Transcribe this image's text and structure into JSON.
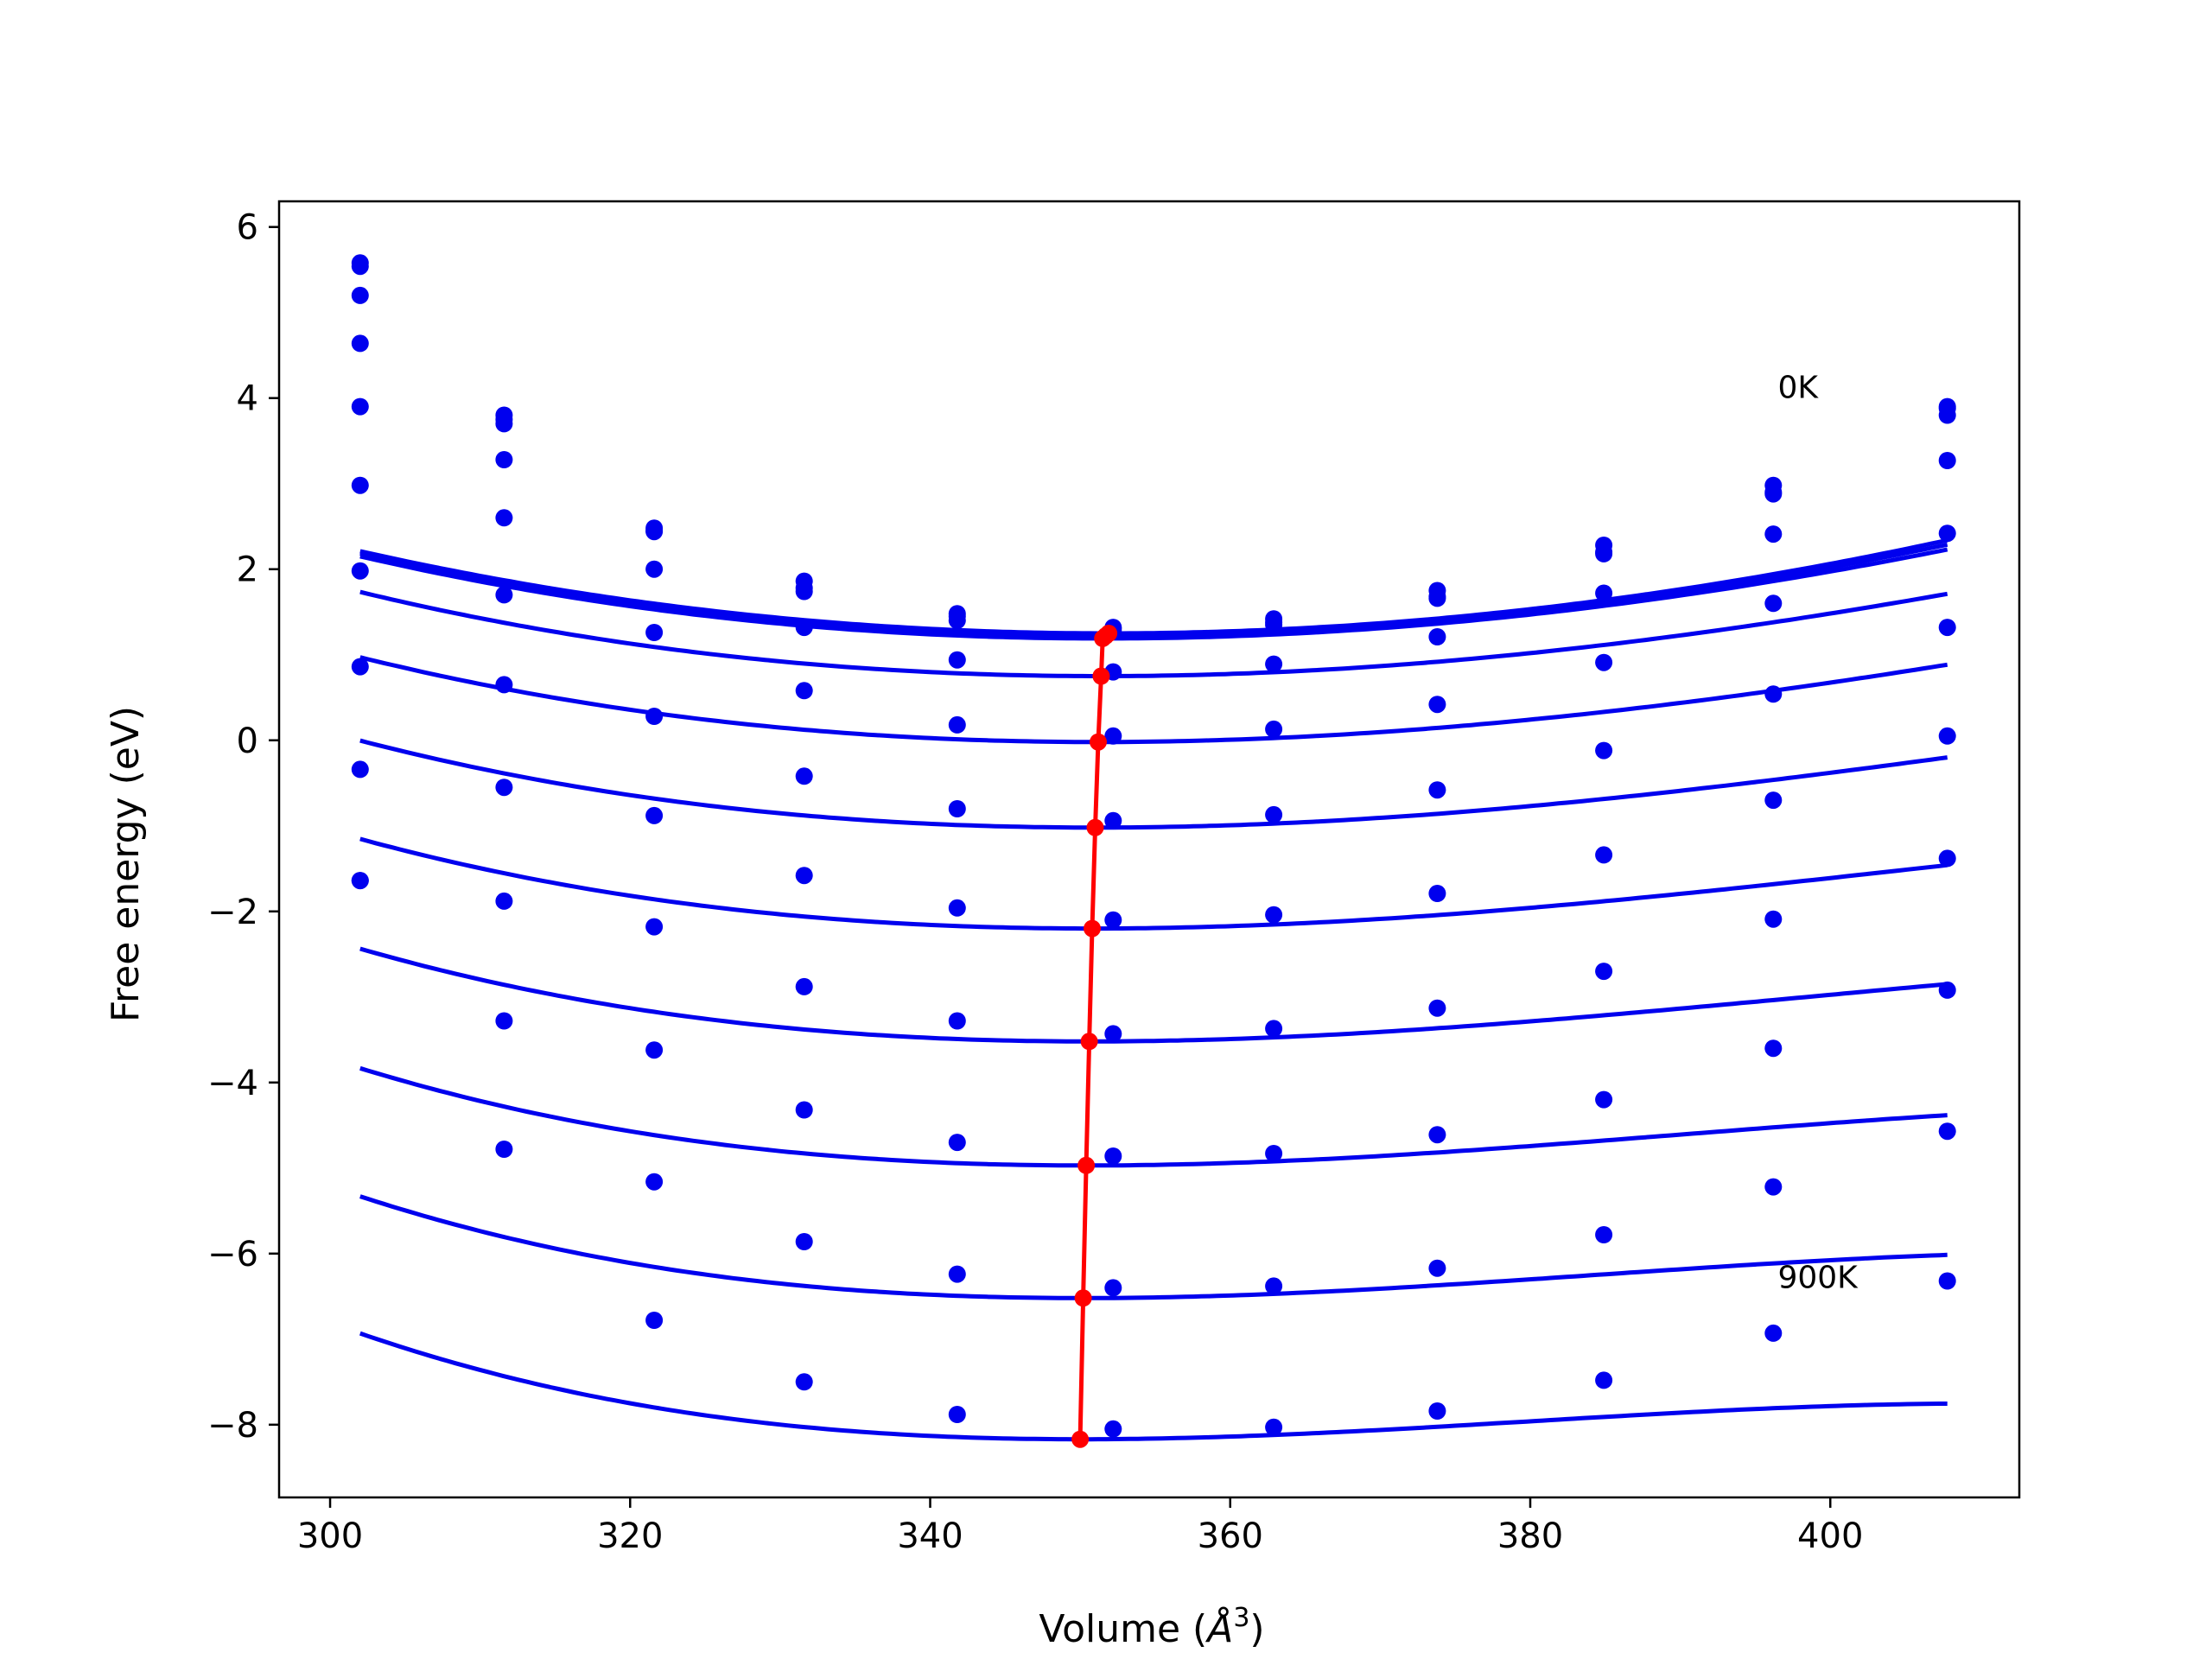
{
  "chart_data": {
    "type": "line",
    "xlabel": "Volume (Å³)",
    "xlabel_parts": {
      "main": "Volume (",
      "symbol": "Å",
      "sup": "3",
      "close": ")"
    },
    "ylabel": "Free energy (eV)",
    "xlim": [
      296.6,
      412.6
    ],
    "ylim": [
      -8.85,
      6.3
    ],
    "xticks": [
      300,
      320,
      340,
      360,
      380,
      400
    ],
    "yticks": [
      -8,
      -6,
      -4,
      -2,
      0,
      2,
      4,
      6
    ],
    "ytick_labels": [
      "−8",
      "−6",
      "−4",
      "−2",
      "0",
      "2",
      "4",
      "6"
    ],
    "xtick_labels": [
      "300",
      "320",
      "340",
      "360",
      "380",
      "400"
    ],
    "annotations": [
      {
        "text": "0K",
        "x": 396.5,
        "y": 4.0
      },
      {
        "text": "900K",
        "x": 396.5,
        "y": -6.4
      }
    ],
    "x_points": [
      302,
      311.6,
      321.6,
      331.6,
      341.8,
      352.2,
      362.9,
      373.8,
      384.9,
      396.2,
      407.8
    ],
    "point_color": "#0000ee",
    "fit_color": "#0000ee",
    "min_line_color": "#ff0000",
    "series": [
      {
        "values": [
          5.58,
          3.8,
          2.48,
          1.86,
          1.48,
          1.32,
          1.42,
          1.75,
          2.28,
          2.98,
          3.9
        ],
        "fit": {
          "vmin": 351.9,
          "fmin": 1.25,
          "a": 0.000368,
          "b": -3.5e-07
        }
      },
      {
        "values": [
          5.54,
          3.75,
          2.45,
          1.78,
          1.45,
          1.3,
          1.38,
          1.68,
          2.2,
          2.9,
          3.88
        ],
        "fit": {
          "vmin": 351.7,
          "fmin": 1.22,
          "a": 0.000366,
          "b": -4.8e-07
        }
      },
      {
        "values": [
          5.2,
          3.7,
          2.44,
          1.74,
          1.4,
          1.27,
          1.35,
          1.66,
          2.18,
          2.88,
          3.8
        ],
        "fit": {
          "vmin": 351.5,
          "fmin": 1.19,
          "a": 0.000362,
          "b": -6e-07
        }
      },
      {
        "values": [
          4.64,
          3.28,
          2.0,
          1.32,
          0.94,
          0.8,
          0.89,
          1.21,
          1.72,
          2.41,
          3.27
        ],
        "fit": {
          "vmin": 351.4,
          "fmin": 0.75,
          "a": 0.000356,
          "b": -9.5e-07
        }
      },
      {
        "values": [
          3.9,
          2.6,
          1.26,
          0.58,
          0.18,
          0.05,
          0.13,
          0.42,
          0.91,
          1.6,
          2.42
        ],
        "fit": {
          "vmin": 351.2,
          "fmin": -0.02,
          "a": 0.00035,
          "b": -1.2e-06
        }
      },
      {
        "values": [
          2.98,
          1.7,
          0.28,
          -0.42,
          -0.8,
          -0.94,
          -0.87,
          -0.58,
          -0.12,
          0.54,
          1.32
        ],
        "fit": {
          "vmin": 351.0,
          "fmin": -1.02,
          "a": 0.000345,
          "b": -1.6e-06
        }
      },
      {
        "values": [
          1.98,
          0.65,
          -0.88,
          -1.58,
          -1.96,
          -2.1,
          -2.04,
          -1.79,
          -1.34,
          -0.7,
          0.05
        ],
        "fit": {
          "vmin": 350.8,
          "fmin": -2.2,
          "a": 0.000342,
          "b": -2e-06
        }
      },
      {
        "values": [
          0.86,
          -0.55,
          -2.18,
          -2.88,
          -3.28,
          -3.43,
          -3.37,
          -3.13,
          -2.7,
          -2.09,
          -1.38
        ],
        "fit": {
          "vmin": 350.6,
          "fmin": -3.52,
          "a": 0.000342,
          "b": -2.4e-06
        }
      },
      {
        "values": [
          -0.34,
          -1.88,
          -3.62,
          -4.32,
          -4.7,
          -4.86,
          -4.83,
          -4.61,
          -4.2,
          -3.6,
          -2.92
        ],
        "fit": {
          "vmin": 350.4,
          "fmin": -4.97,
          "a": 0.000345,
          "b": -2.9e-06
        }
      },
      {
        "values": [
          -1.64,
          -3.28,
          -5.16,
          -5.86,
          -6.24,
          -6.4,
          -6.38,
          -6.17,
          -5.78,
          -5.22,
          -4.57
        ],
        "fit": {
          "vmin": 350.2,
          "fmin": -6.52,
          "a": 0.000348,
          "b": -3.4e-06
        }
      },
      {
        "values": [
          -1.64,
          -4.78,
          -6.78,
          -7.5,
          -7.88,
          -8.05,
          -8.03,
          -7.84,
          -7.48,
          -6.93,
          -6.32
        ],
        "fit": {
          "vmin": 350.0,
          "fmin": -8.17,
          "a": 0.00035,
          "b": -3.9e-06
        }
      }
    ],
    "minima": {
      "x": [
        351.9,
        351.7,
        351.5,
        351.4,
        351.2,
        351.0,
        350.8,
        350.6,
        350.4,
        350.2,
        350.0
      ],
      "y": [
        1.25,
        1.22,
        1.19,
        0.75,
        -0.02,
        -1.02,
        -2.2,
        -3.52,
        -4.97,
        -6.52,
        -8.17
      ]
    }
  }
}
